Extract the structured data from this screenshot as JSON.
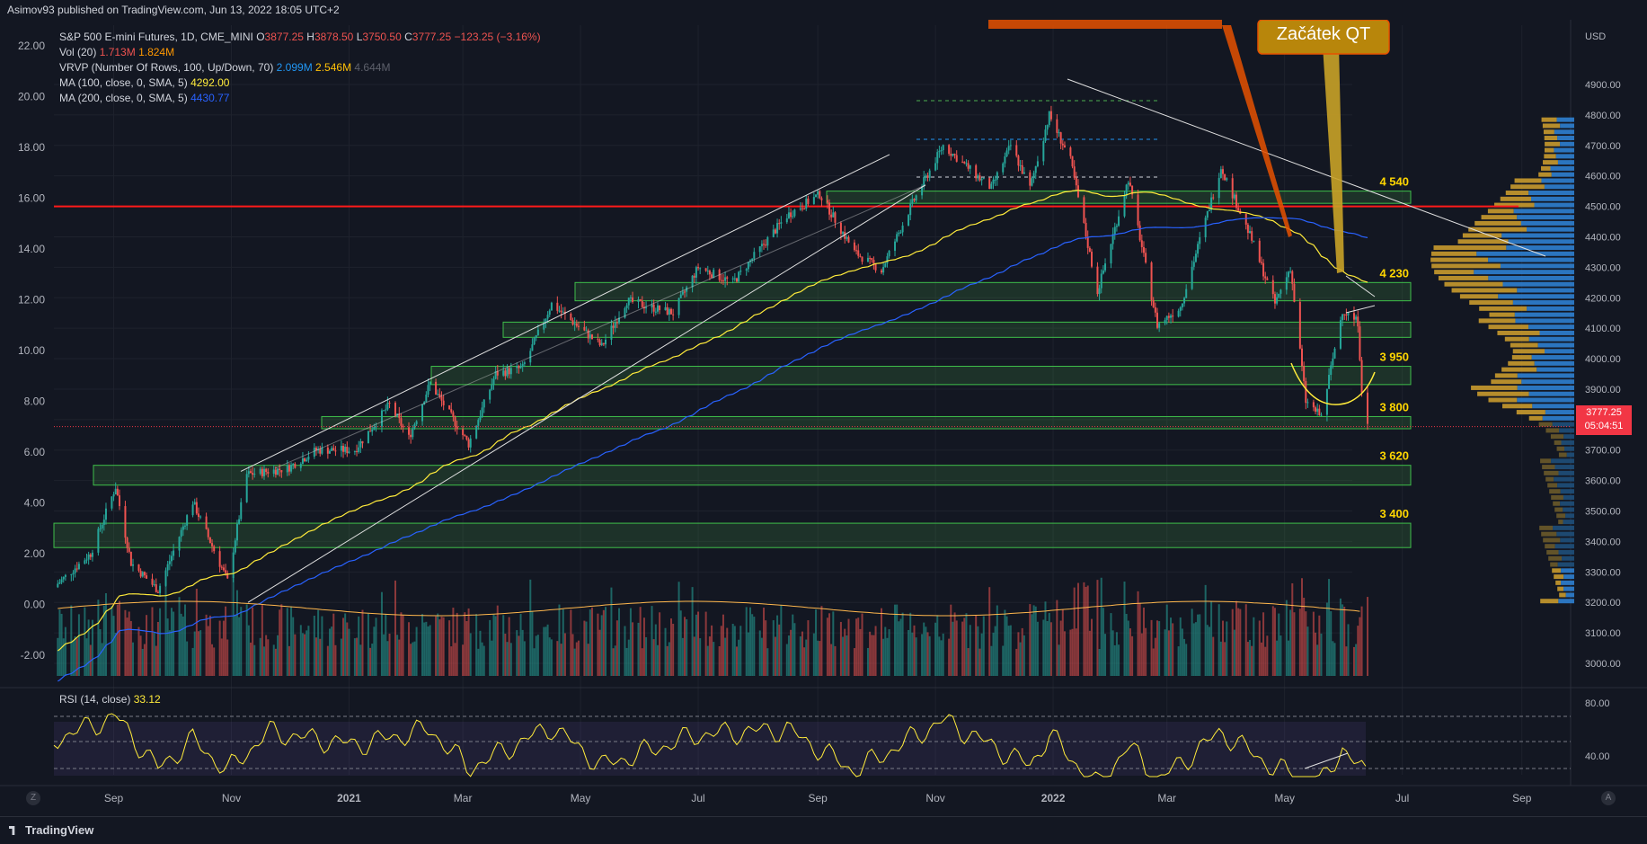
{
  "header": {
    "published": "Asimov93 published on TradingView.com, Jun 13, 2022 18:05 UTC+2"
  },
  "legend": {
    "symbol": "S&P 500 E-mini Futures, 1D, CME_MINI",
    "o_label": "O",
    "o": "3877.25",
    "h_label": "H",
    "h": "3878.50",
    "l_label": "L",
    "l": "3750.50",
    "c_label": "C",
    "c": "3777.25",
    "change": "−123.25 (−3.16%)",
    "vol_label": "Vol (20)",
    "vol1": "1.713M",
    "vol2": "1.824M",
    "vrvp_label": "VRVP (Number Of Rows, 100, Up/Down, 70)",
    "vrvp1": "2.099M",
    "vrvp2": "2.546M",
    "vrvp3": "4.644M",
    "ma100_label": "MA (100, close, 0, SMA, 5)",
    "ma100": "4292.00",
    "ma200_label": "MA (200, close, 0, SMA, 5)",
    "ma200": "4430.77",
    "rsi_label": "RSI (14, close)",
    "rsi": "33.12"
  },
  "annotations": {
    "callout": "Začátek QT",
    "levels": [
      "4 540",
      "4 230",
      "3 950",
      "3 800",
      "3 620",
      "3 400"
    ]
  },
  "price_tag": {
    "price": "3777.25",
    "countdown": "05:04:51"
  },
  "footer": {
    "brand": "TradingView",
    "z_btn": "Z",
    "a_btn": "A"
  },
  "colors": {
    "bg": "#131722",
    "up": "#26a69a",
    "down": "#ef5350",
    "ma100": "#ffeb3b",
    "ma200": "#2962ff",
    "resistance": "#ff1a1a",
    "zone": "#4caf50",
    "annotation": "#ffd600"
  },
  "chart_data": {
    "type": "candlestick",
    "right_axis": {
      "unit": "USD",
      "ticks": [
        3000,
        3100,
        3200,
        3300,
        3400,
        3500,
        3600,
        3700,
        3800,
        3900,
        4000,
        4100,
        4200,
        4300,
        4400,
        4500,
        4600,
        4700,
        4800,
        4900
      ],
      "range": [
        2950,
        4930
      ]
    },
    "left_axis": {
      "ticks": [
        "-2.00",
        "0.00",
        "2.00",
        "4.00",
        "6.00",
        "8.00",
        "10.00",
        "12.00",
        "14.00",
        "16.00",
        "18.00",
        "20.00",
        "22.00"
      ]
    },
    "x_axis": {
      "ticks": [
        "Sep",
        "Nov",
        "2021",
        "Mar",
        "May",
        "Jul",
        "Sep",
        "Nov",
        "2022",
        "Mar",
        "May",
        "Jul",
        "Sep"
      ]
    },
    "rsi_axis": {
      "ticks": [
        "80.00",
        "40.00"
      ]
    },
    "horizontal_resistance": 4500,
    "zones": [
      {
        "label": "4 540",
        "from": 4510,
        "to": 4550
      },
      {
        "label": "4 230",
        "from": 4190,
        "to": 4250
      },
      {
        "label": "",
        "from": 4070,
        "to": 4120
      },
      {
        "label": "3 950",
        "from": 3915,
        "to": 3975
      },
      {
        "label": "3 800",
        "from": 3770,
        "to": 3810
      },
      {
        "label": "3 620",
        "from": 3585,
        "to": 3650
      },
      {
        "label": "3 400",
        "from": 3380,
        "to": 3460
      }
    ],
    "price_path": [
      [
        "2020-08-01",
        3250
      ],
      [
        "2020-08-20",
        3360
      ],
      [
        "2020-09-02",
        3580
      ],
      [
        "2020-09-10",
        3330
      ],
      [
        "2020-09-24",
        3240
      ],
      [
        "2020-10-12",
        3530
      ],
      [
        "2020-10-30",
        3270
      ],
      [
        "2020-11-09",
        3620
      ],
      [
        "2020-11-30",
        3640
      ],
      [
        "2020-12-15",
        3700
      ],
      [
        "2021-01-04",
        3700
      ],
      [
        "2021-01-22",
        3850
      ],
      [
        "2021-02-01",
        3740
      ],
      [
        "2021-02-12",
        3920
      ],
      [
        "2021-03-04",
        3720
      ],
      [
        "2021-03-18",
        3950
      ],
      [
        "2021-04-01",
        3970
      ],
      [
        "2021-04-16",
        4180
      ],
      [
        "2021-05-12",
        4040
      ],
      [
        "2021-05-25",
        4190
      ],
      [
        "2021-06-18",
        4150
      ],
      [
        "2021-07-01",
        4300
      ],
      [
        "2021-07-19",
        4250
      ],
      [
        "2021-08-16",
        4470
      ],
      [
        "2021-09-02",
        4540
      ],
      [
        "2021-09-20",
        4350
      ],
      [
        "2021-10-04",
        4290
      ],
      [
        "2021-10-20",
        4510
      ],
      [
        "2021-11-05",
        4700
      ],
      [
        "2021-11-26",
        4580
      ],
      [
        "2021-11-30",
        4560
      ],
      [
        "2021-12-10",
        4700
      ],
      [
        "2021-12-20",
        4560
      ],
      [
        "2021-12-30",
        4800
      ],
      [
        "2022-01-10",
        4650
      ],
      [
        "2022-01-24",
        4220
      ],
      [
        "2022-02-09",
        4590
      ],
      [
        "2022-02-24",
        4110
      ],
      [
        "2022-03-08",
        4170
      ],
      [
        "2022-03-29",
        4630
      ],
      [
        "2022-04-14",
        4390
      ],
      [
        "2022-04-26",
        4180
      ],
      [
        "2022-05-04",
        4300
      ],
      [
        "2022-05-12",
        3860
      ],
      [
        "2022-05-20",
        3810
      ],
      [
        "2022-05-31",
        4160
      ],
      [
        "2022-06-08",
        4120
      ],
      [
        "2022-06-10",
        3900
      ],
      [
        "2022-06-13",
        3777
      ]
    ],
    "rsi_path": [
      [
        "2020-08-01",
        62
      ],
      [
        "2020-09-02",
        80
      ],
      [
        "2020-09-24",
        40
      ],
      [
        "2020-10-12",
        62
      ],
      [
        "2020-10-30",
        38
      ],
      [
        "2020-11-20",
        68
      ],
      [
        "2021-01-04",
        58
      ],
      [
        "2021-02-12",
        70
      ],
      [
        "2021-03-04",
        40
      ],
      [
        "2021-04-16",
        72
      ],
      [
        "2021-05-12",
        42
      ],
      [
        "2021-07-01",
        66
      ],
      [
        "2021-08-16",
        70
      ],
      [
        "2021-09-20",
        38
      ],
      [
        "2021-11-05",
        77
      ],
      [
        "2021-12-20",
        42
      ],
      [
        "2021-12-30",
        66
      ],
      [
        "2022-01-24",
        26
      ],
      [
        "2022-02-09",
        58
      ],
      [
        "2022-02-24",
        30
      ],
      [
        "2022-03-29",
        68
      ],
      [
        "2022-04-26",
        40
      ],
      [
        "2022-05-20",
        28
      ],
      [
        "2022-05-31",
        56
      ],
      [
        "2022-06-13",
        33
      ]
    ],
    "volume_profile_note": "VRVP histogram on right side",
    "ylabel": "USD"
  }
}
